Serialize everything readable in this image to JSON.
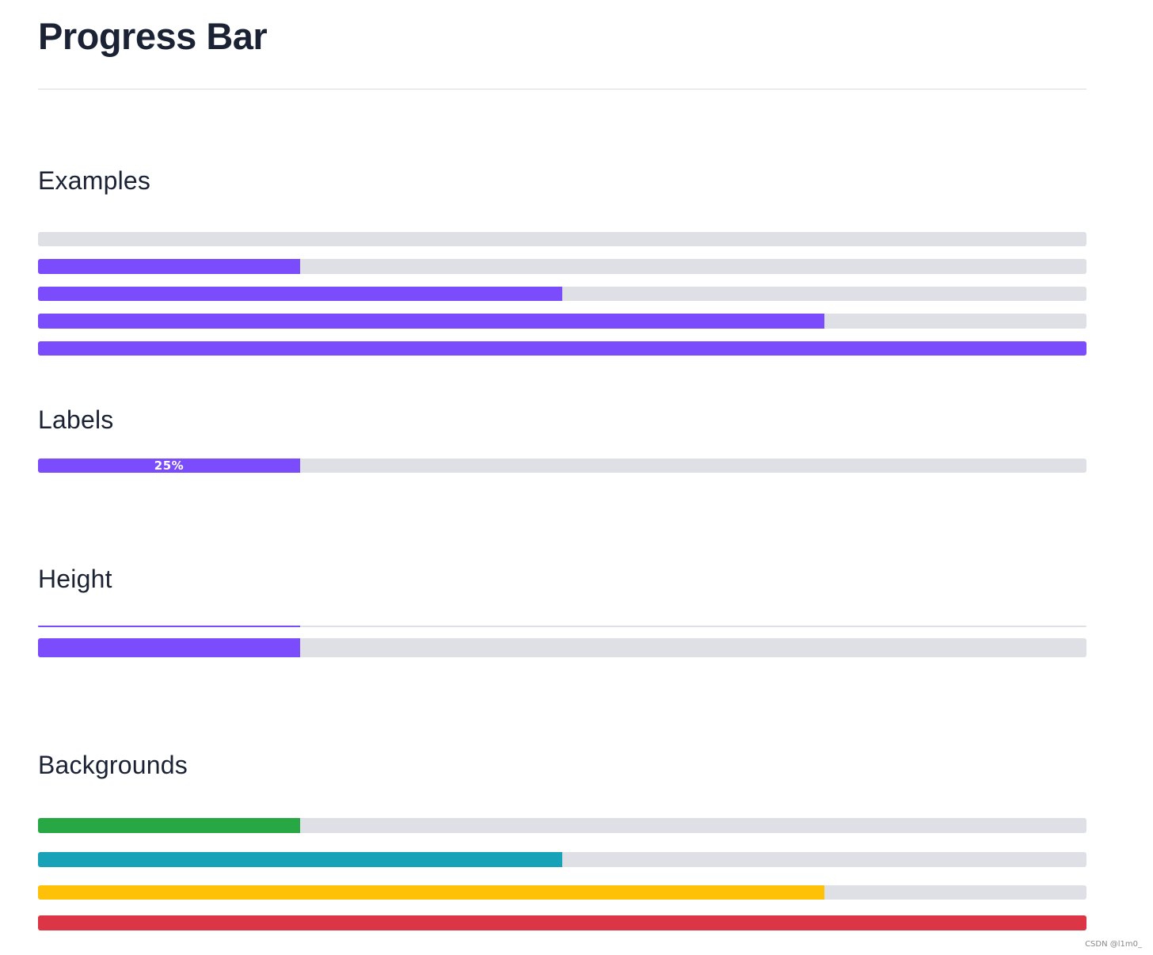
{
  "page": {
    "title": "Progress Bar"
  },
  "colors": {
    "track": "#dee0e5",
    "primary": "#7a4cfb",
    "success": "#28a745",
    "info": "#17a2b8",
    "warning": "#ffc107",
    "danger": "#dc3545"
  },
  "sections": {
    "examples": {
      "heading": "Examples",
      "bars": [
        {
          "value": 0,
          "color": "#7a4cfb"
        },
        {
          "value": 25,
          "color": "#7a4cfb"
        },
        {
          "value": 50,
          "color": "#7a4cfb"
        },
        {
          "value": 75,
          "color": "#7a4cfb"
        },
        {
          "value": 100,
          "color": "#7a4cfb"
        }
      ]
    },
    "labels": {
      "heading": "Labels",
      "bars": [
        {
          "value": 25,
          "color": "#7a4cfb",
          "label": "25%"
        }
      ]
    },
    "height": {
      "heading": "Height",
      "bars": [
        {
          "value": 25,
          "color": "#7a4cfb"
        },
        {
          "value": 25,
          "color": "#7a4cfb"
        }
      ]
    },
    "backgrounds": {
      "heading": "Backgrounds",
      "bars": [
        {
          "value": 25,
          "color": "#28a745"
        },
        {
          "value": 50,
          "color": "#17a2b8"
        },
        {
          "value": 75,
          "color": "#ffc107"
        },
        {
          "value": 100,
          "color": "#dc3545"
        }
      ]
    }
  },
  "watermark": "CSDN @l1m0_"
}
